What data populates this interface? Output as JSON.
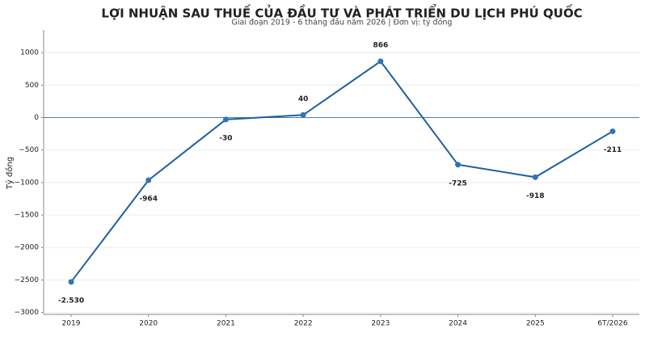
{
  "chart_data": {
    "type": "line",
    "title": "LỢI NHUẬN SAU THUẾ CỦA ĐẦU TƯ VÀ PHÁT TRIỂN DU LỊCH PHÚ QUỐC",
    "subtitle": "Giai đoạn 2019 - 6 tháng đầu năm 2026 | Đơn vị: tỷ đồng",
    "y_label": "Tỷ đồng",
    "categories": [
      "2019",
      "2020",
      "2021",
      "2022",
      "2023",
      "2024",
      "2025",
      "6T/2026"
    ],
    "series": [
      {
        "name": "Lợi nhuận sau thuế",
        "color": "#1f5fa0",
        "values": [
          -2530,
          -964,
          -30,
          40,
          866,
          -725,
          -918,
          -211
        ],
        "value_labels": [
          "-2.530",
          "-964",
          "-30",
          "40",
          "866",
          "-725",
          "-918",
          "-211"
        ]
      }
    ],
    "ylim": [
      -3030,
      1350
    ],
    "yticks": [
      {
        "value": -3000,
        "label": "−3000"
      },
      {
        "value": -2500,
        "label": "−2500"
      },
      {
        "value": -2000,
        "label": "−2000"
      },
      {
        "value": -1500,
        "label": "−1500"
      },
      {
        "value": -1000,
        "label": "−1000"
      },
      {
        "value": -500,
        "label": "−500"
      },
      0,
      500,
      1000
    ],
    "grid": true,
    "zero_line": true,
    "legend": false
  }
}
